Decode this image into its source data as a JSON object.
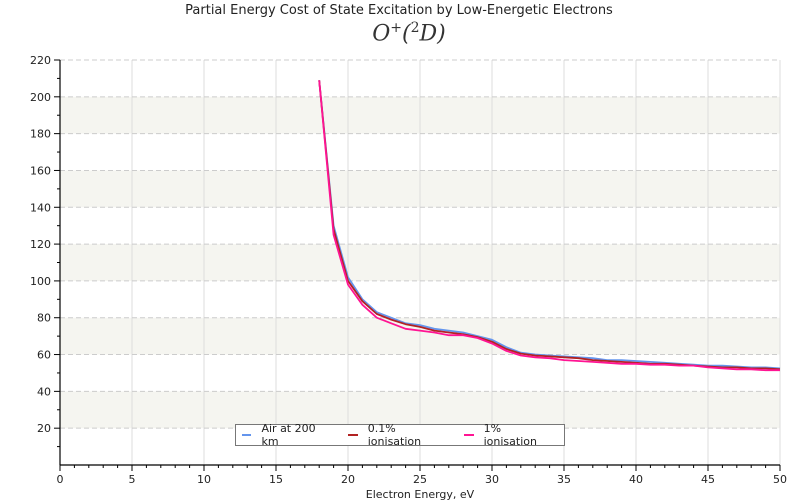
{
  "chart_data": {
    "type": "line",
    "title": "Partial Energy Cost of State Excitation by Low-Energetic Electrons",
    "subtitle": "O+(2D)",
    "xlabel": "Electron Energy, eV",
    "ylabel": "",
    "xlim": [
      0,
      50
    ],
    "ylim": [
      0,
      220
    ],
    "xticks": [
      0,
      5,
      10,
      15,
      20,
      25,
      30,
      35,
      40,
      45,
      50
    ],
    "yticks": [
      20,
      40,
      60,
      80,
      100,
      120,
      140,
      160,
      180,
      200,
      220
    ],
    "grid": true,
    "legend_position": "bottom-center",
    "x": [
      18,
      19,
      20,
      21,
      22,
      23,
      24,
      25,
      26,
      27,
      28,
      29,
      30,
      31,
      32,
      33,
      34,
      35,
      36,
      37,
      38,
      39,
      40,
      41,
      42,
      43,
      44,
      45,
      46,
      47,
      48,
      49,
      50
    ],
    "series": [
      {
        "name": "Air at 200 km",
        "color": "#6495ed",
        "values": [
          209,
          130,
          102,
          90,
          83,
          80,
          77,
          76,
          74,
          73,
          72,
          70,
          68,
          64,
          61,
          60,
          59.5,
          59,
          58.5,
          58,
          57,
          57,
          56.5,
          56,
          55.5,
          55,
          54.5,
          54,
          54,
          53.5,
          53,
          53,
          52.5
        ]
      },
      {
        "name": "0.1% ionisation",
        "color": "#b22222",
        "values": [
          209,
          128,
          100,
          89,
          82,
          79,
          76.5,
          75,
          73,
          72,
          71,
          69.5,
          67,
          63,
          60.5,
          59.5,
          59,
          58.5,
          58,
          57,
          56.5,
          56,
          55.5,
          55,
          55,
          54.5,
          54,
          53.5,
          53,
          53,
          52.5,
          52.5,
          52
        ]
      },
      {
        "name": "1% ionisation",
        "color": "#ff1493",
        "values": [
          209,
          125,
          98,
          87,
          80,
          77,
          74,
          73,
          72,
          70.5,
          70.5,
          69,
          66,
          62,
          59.5,
          58.5,
          58,
          57,
          56.5,
          56,
          55.5,
          55,
          55,
          54.5,
          54.5,
          54,
          54,
          53,
          52.5,
          52,
          52,
          51.5,
          51.5
        ]
      }
    ]
  }
}
